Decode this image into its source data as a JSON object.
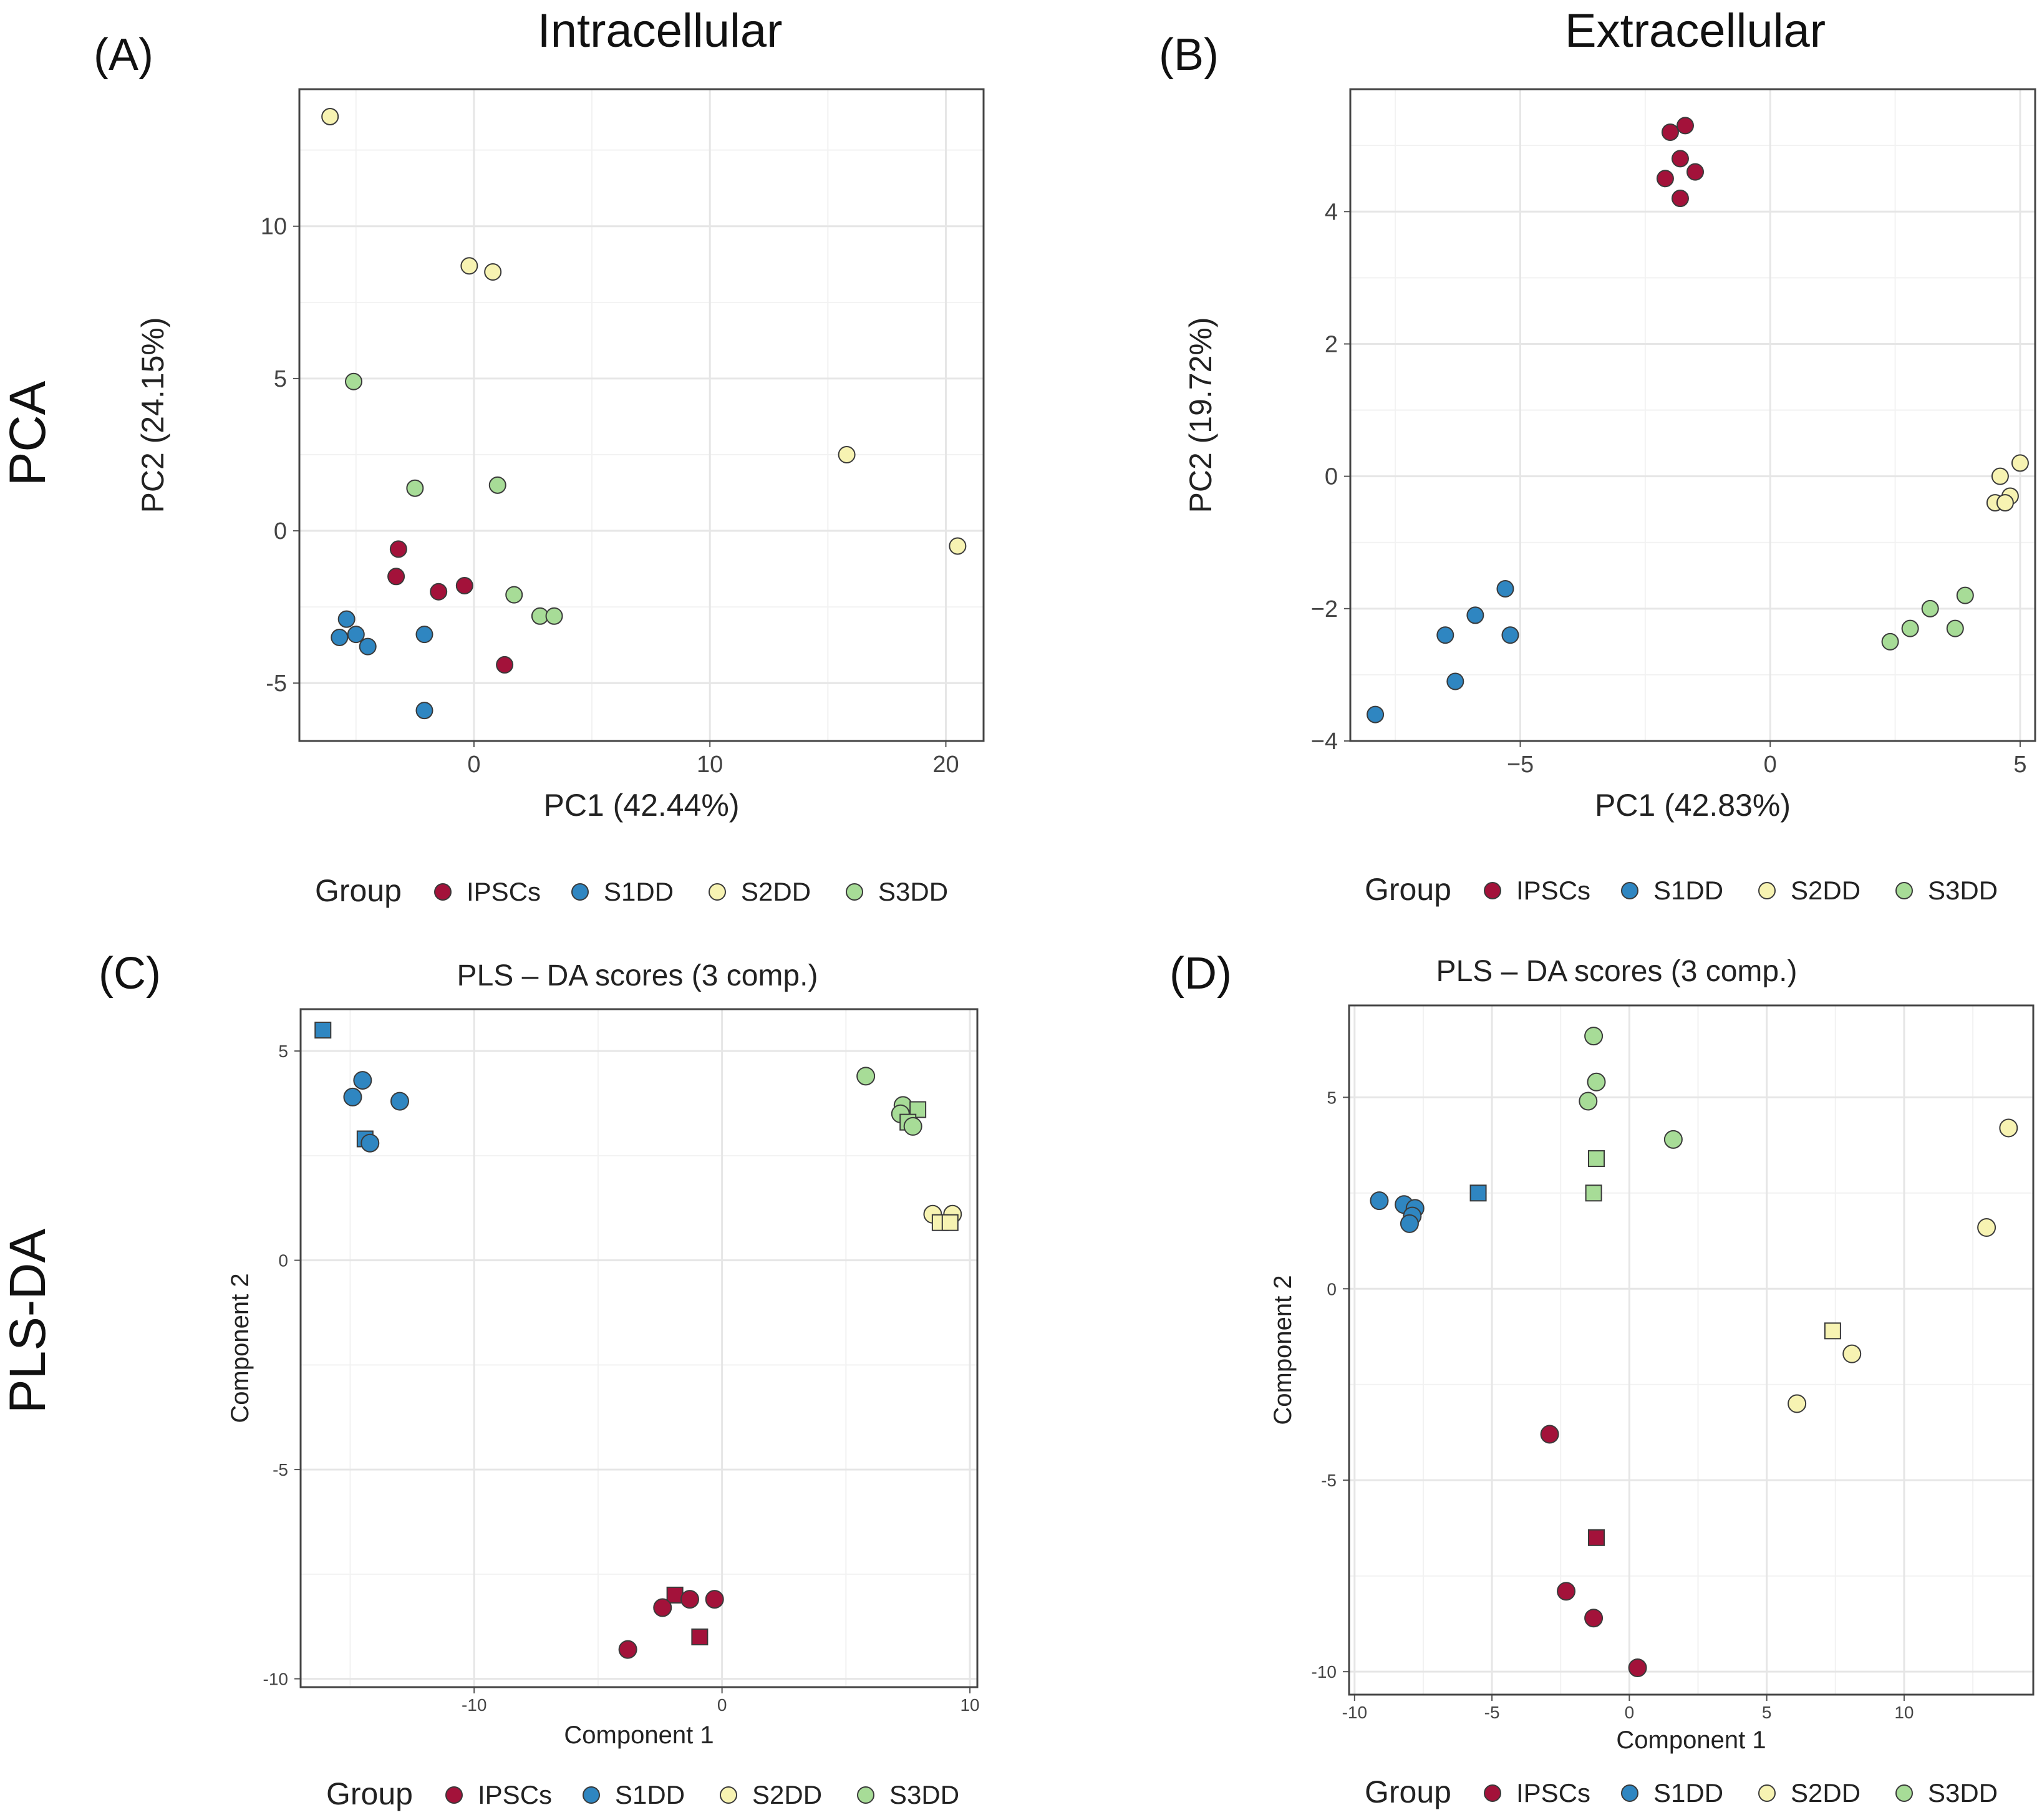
{
  "row_labels": [
    "PCA",
    "PLS-DA"
  ],
  "legend": {
    "title": "Group",
    "groups": [
      {
        "name": "IPSCs",
        "color": "#a3123a"
      },
      {
        "name": "S1DD",
        "color": "#2f86c1"
      },
      {
        "name": "S2DD",
        "color": "#f7f3b2"
      },
      {
        "name": "S3DD",
        "color": "#a7dc97"
      }
    ]
  },
  "chart_data": [
    {
      "panel": "(A)",
      "type": "scatter",
      "title": "Intracellular",
      "xlabel": "PC1 (42.44%)",
      "ylabel": "PC2 (24.15%)",
      "xlim": [
        -7.4,
        21.6
      ],
      "ylim": [
        -6.9,
        14.5
      ],
      "xticks": [
        0,
        10,
        20
      ],
      "yticks": [
        -5,
        0,
        5,
        10
      ],
      "xtick_labels": [
        "0",
        "10",
        "20"
      ],
      "ytick_labels": [
        "-5",
        "0",
        "5",
        "10"
      ],
      "grid": true,
      "points": [
        {
          "group": "S2DD",
          "x": -6.1,
          "y": 13.6
        },
        {
          "group": "S2DD",
          "x": -0.2,
          "y": 8.7
        },
        {
          "group": "S2DD",
          "x": 0.8,
          "y": 8.5
        },
        {
          "group": "S2DD",
          "x": 15.8,
          "y": 2.5
        },
        {
          "group": "S2DD",
          "x": 20.5,
          "y": -0.5
        },
        {
          "group": "S3DD",
          "x": -5.1,
          "y": 4.9
        },
        {
          "group": "S3DD",
          "x": -2.5,
          "y": 1.4
        },
        {
          "group": "S3DD",
          "x": 1.0,
          "y": 1.5
        },
        {
          "group": "S3DD",
          "x": 1.7,
          "y": -2.1
        },
        {
          "group": "S3DD",
          "x": 2.8,
          "y": -2.8
        },
        {
          "group": "S3DD",
          "x": 3.4,
          "y": -2.8
        },
        {
          "group": "IPSCs",
          "x": -3.2,
          "y": -0.6
        },
        {
          "group": "IPSCs",
          "x": -3.3,
          "y": -1.5
        },
        {
          "group": "IPSCs",
          "x": -1.5,
          "y": -2.0
        },
        {
          "group": "IPSCs",
          "x": -0.4,
          "y": -1.8
        },
        {
          "group": "IPSCs",
          "x": 1.3,
          "y": -4.4
        },
        {
          "group": "S1DD",
          "x": -5.4,
          "y": -2.9
        },
        {
          "group": "S1DD",
          "x": -5.7,
          "y": -3.5
        },
        {
          "group": "S1DD",
          "x": -5.0,
          "y": -3.4
        },
        {
          "group": "S1DD",
          "x": -4.5,
          "y": -3.8
        },
        {
          "group": "S1DD",
          "x": -2.1,
          "y": -3.4
        },
        {
          "group": "S1DD",
          "x": -2.1,
          "y": -5.9
        }
      ]
    },
    {
      "panel": "(B)",
      "type": "scatter",
      "title": "Extracellular",
      "xlabel": "PC1 (42.83%)",
      "ylabel": "PC2 (19.72%)",
      "xlim": [
        -8.4,
        5.3
      ],
      "ylim": [
        -4.0,
        5.85
      ],
      "xticks": [
        -5,
        0,
        5
      ],
      "yticks": [
        -4,
        -2,
        0,
        2,
        4
      ],
      "xtick_labels": [
        "−5",
        "0",
        "5"
      ],
      "ytick_labels": [
        "−4",
        "−2",
        "0",
        "2",
        "4"
      ],
      "grid": true,
      "points": [
        {
          "group": "IPSCs",
          "x": -2.0,
          "y": 5.2
        },
        {
          "group": "IPSCs",
          "x": -1.7,
          "y": 5.3
        },
        {
          "group": "IPSCs",
          "x": -1.8,
          "y": 4.8
        },
        {
          "group": "IPSCs",
          "x": -2.1,
          "y": 4.5
        },
        {
          "group": "IPSCs",
          "x": -1.5,
          "y": 4.6
        },
        {
          "group": "IPSCs",
          "x": -1.8,
          "y": 4.2
        },
        {
          "group": "S2DD",
          "x": 4.6,
          "y": 0.0
        },
        {
          "group": "S2DD",
          "x": 5.0,
          "y": 0.2
        },
        {
          "group": "S2DD",
          "x": 4.8,
          "y": -0.3
        },
        {
          "group": "S2DD",
          "x": 4.5,
          "y": -0.4
        },
        {
          "group": "S2DD",
          "x": 4.7,
          "y": -0.4
        },
        {
          "group": "S3DD",
          "x": 3.9,
          "y": -1.8
        },
        {
          "group": "S3DD",
          "x": 3.2,
          "y": -2.0
        },
        {
          "group": "S3DD",
          "x": 2.8,
          "y": -2.3
        },
        {
          "group": "S3DD",
          "x": 3.7,
          "y": -2.3
        },
        {
          "group": "S3DD",
          "x": 2.4,
          "y": -2.5
        },
        {
          "group": "S1DD",
          "x": -5.3,
          "y": -1.7
        },
        {
          "group": "S1DD",
          "x": -5.9,
          "y": -2.1
        },
        {
          "group": "S1DD",
          "x": -6.5,
          "y": -2.4
        },
        {
          "group": "S1DD",
          "x": -5.2,
          "y": -2.4
        },
        {
          "group": "S1DD",
          "x": -6.3,
          "y": -3.1
        },
        {
          "group": "S1DD",
          "x": -7.9,
          "y": -3.6
        }
      ]
    },
    {
      "panel": "(C)",
      "type": "scatter",
      "title": "PLS – DA scores (3 comp.)",
      "xlabel": "Component 1",
      "ylabel": "Component 2",
      "xlim": [
        -17.0,
        10.3
      ],
      "ylim": [
        -10.2,
        6.0
      ],
      "xticks": [
        -10,
        0,
        10
      ],
      "yticks": [
        -10,
        -5,
        0,
        5
      ],
      "xtick_labels": [
        "-10",
        "0",
        "10"
      ],
      "ytick_labels": [
        "-10",
        "-5",
        "0",
        "5"
      ],
      "grid": true,
      "points": [
        {
          "group": "S1DD",
          "x": -16.1,
          "y": 5.5,
          "shape": "square"
        },
        {
          "group": "S1DD",
          "x": -14.5,
          "y": 4.3
        },
        {
          "group": "S1DD",
          "x": -14.9,
          "y": 3.9
        },
        {
          "group": "S1DD",
          "x": -13.0,
          "y": 3.8
        },
        {
          "group": "S1DD",
          "x": -14.4,
          "y": 2.9,
          "shape": "square"
        },
        {
          "group": "S1DD",
          "x": -14.2,
          "y": 2.8
        },
        {
          "group": "S3DD",
          "x": 5.8,
          "y": 4.4
        },
        {
          "group": "S3DD",
          "x": 7.3,
          "y": 3.7
        },
        {
          "group": "S3DD",
          "x": 7.2,
          "y": 3.5
        },
        {
          "group": "S3DD",
          "x": 7.9,
          "y": 3.6,
          "shape": "square"
        },
        {
          "group": "S3DD",
          "x": 7.5,
          "y": 3.3,
          "shape": "square"
        },
        {
          "group": "S3DD",
          "x": 7.7,
          "y": 3.2
        },
        {
          "group": "S2DD",
          "x": 8.5,
          "y": 1.1
        },
        {
          "group": "S2DD",
          "x": 9.3,
          "y": 1.1
        },
        {
          "group": "S2DD",
          "x": 8.8,
          "y": 0.9,
          "shape": "square"
        },
        {
          "group": "S2DD",
          "x": 9.2,
          "y": 0.9,
          "shape": "square"
        },
        {
          "group": "IPSCs",
          "x": -1.9,
          "y": -8.0,
          "shape": "square"
        },
        {
          "group": "IPSCs",
          "x": -1.3,
          "y": -8.1
        },
        {
          "group": "IPSCs",
          "x": -0.3,
          "y": -8.1
        },
        {
          "group": "IPSCs",
          "x": -2.4,
          "y": -8.3
        },
        {
          "group": "IPSCs",
          "x": -0.9,
          "y": -9.0,
          "shape": "square"
        },
        {
          "group": "IPSCs",
          "x": -3.8,
          "y": -9.3
        }
      ]
    },
    {
      "panel": "(D)",
      "type": "scatter",
      "title": "PLS – DA scores (3 comp.)",
      "xlabel": "Component 1",
      "ylabel": "Component 2",
      "xlim": [
        -10.2,
        14.7
      ],
      "ylim": [
        -10.6,
        7.4
      ],
      "xticks": [
        -10,
        -5,
        0,
        5,
        10
      ],
      "yticks": [
        -10,
        -5,
        0,
        5
      ],
      "xtick_labels": [
        "-10",
        "-5",
        "0",
        "5",
        "10"
      ],
      "ytick_labels": [
        "-10",
        "-5",
        "0",
        "5"
      ],
      "grid": true,
      "points": [
        {
          "group": "S3DD",
          "x": -1.3,
          "y": 6.6
        },
        {
          "group": "S3DD",
          "x": -1.2,
          "y": 5.4
        },
        {
          "group": "S3DD",
          "x": -1.5,
          "y": 4.9
        },
        {
          "group": "S3DD",
          "x": 1.6,
          "y": 3.9
        },
        {
          "group": "S3DD",
          "x": -1.2,
          "y": 3.4,
          "shape": "square"
        },
        {
          "group": "S3DD",
          "x": -1.3,
          "y": 2.5,
          "shape": "square"
        },
        {
          "group": "S2DD",
          "x": 13.8,
          "y": 4.2
        },
        {
          "group": "S2DD",
          "x": 13.0,
          "y": 1.6
        },
        {
          "group": "S2DD",
          "x": 7.4,
          "y": -1.1,
          "shape": "square"
        },
        {
          "group": "S2DD",
          "x": 8.1,
          "y": -1.7
        },
        {
          "group": "S2DD",
          "x": 6.1,
          "y": -3.0
        },
        {
          "group": "S1DD",
          "x": -9.1,
          "y": 2.3
        },
        {
          "group": "S1DD",
          "x": -8.2,
          "y": 2.2
        },
        {
          "group": "S1DD",
          "x": -7.8,
          "y": 2.1
        },
        {
          "group": "S1DD",
          "x": -7.9,
          "y": 1.9
        },
        {
          "group": "S1DD",
          "x": -8.0,
          "y": 1.7
        },
        {
          "group": "S1DD",
          "x": -5.5,
          "y": 2.5,
          "shape": "square"
        },
        {
          "group": "IPSCs",
          "x": -2.9,
          "y": -3.8
        },
        {
          "group": "IPSCs",
          "x": -1.2,
          "y": -6.5,
          "shape": "square"
        },
        {
          "group": "IPSCs",
          "x": -2.3,
          "y": -7.9
        },
        {
          "group": "IPSCs",
          "x": -1.3,
          "y": -8.6
        },
        {
          "group": "IPSCs",
          "x": 0.3,
          "y": -9.9
        }
      ]
    }
  ]
}
